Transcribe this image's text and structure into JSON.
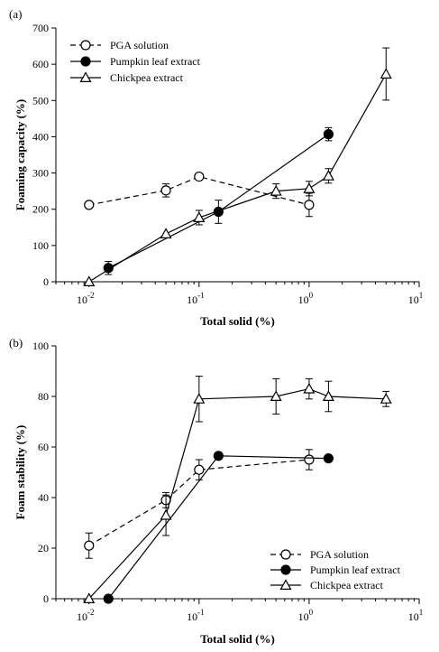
{
  "chart_data": [
    {
      "panel_label": "(a)",
      "type": "line",
      "xscale": "log",
      "xlim": [
        0.005,
        10
      ],
      "ylim": [
        0,
        700
      ],
      "xlabel": "Total solid (%)",
      "ylabel": "Foaming capacity (%)",
      "xticks": [
        0.01,
        0.1,
        1,
        10
      ],
      "xtick_base": [
        "10",
        "10",
        "10",
        "10"
      ],
      "xtick_exp": [
        "-2",
        "-1",
        "0",
        "1"
      ],
      "yticks": [
        0,
        100,
        200,
        300,
        400,
        500,
        600,
        700
      ],
      "ytick_labels": [
        "0",
        "100",
        "200",
        "300",
        "400",
        "500",
        "600",
        "700"
      ],
      "legend_position": "top-left",
      "series": [
        {
          "name": "PGA solution",
          "marker": "open-circle",
          "linestyle": "dashed",
          "x": [
            0.01,
            0.05,
            0.1,
            1
          ],
          "y": [
            212,
            252,
            290,
            212
          ],
          "err": [
            0,
            18,
            0,
            32
          ]
        },
        {
          "name": "Pumpkin leaf extract",
          "marker": "filled-circle",
          "linestyle": "solid",
          "x": [
            0.015,
            0.15,
            1.5
          ],
          "y": [
            38,
            193,
            407
          ],
          "err": [
            18,
            32,
            18
          ]
        },
        {
          "name": "Chickpea extract",
          "marker": "open-triangle",
          "linestyle": "solid",
          "x": [
            0.01,
            0.05,
            0.1,
            0.5,
            1,
            1.5,
            5
          ],
          "y": [
            0,
            132,
            177,
            250,
            257,
            292,
            573
          ],
          "err": [
            0,
            0,
            20,
            20,
            20,
            20,
            72
          ]
        }
      ]
    },
    {
      "panel_label": "(b)",
      "type": "line",
      "xscale": "log",
      "xlim": [
        0.005,
        10
      ],
      "ylim": [
        0,
        100
      ],
      "xlabel": "Total solid (%)",
      "ylabel": "Foam stability (%)",
      "xticks": [
        0.01,
        0.1,
        1,
        10
      ],
      "xtick_base": [
        "10",
        "10",
        "10",
        "10"
      ],
      "xtick_exp": [
        "-2",
        "-1",
        "0",
        "1"
      ],
      "yticks": [
        0,
        20,
        40,
        60,
        80,
        100
      ],
      "ytick_labels": [
        "0",
        "20",
        "40",
        "60",
        "80",
        "100"
      ],
      "legend_position": "bottom-right",
      "series": [
        {
          "name": "PGA solution",
          "marker": "open-circle",
          "linestyle": "dashed",
          "x": [
            0.01,
            0.05,
            0.1,
            1
          ],
          "y": [
            21,
            39,
            51,
            55
          ],
          "err": [
            5,
            3,
            4,
            4
          ]
        },
        {
          "name": "Pumpkin leaf extract",
          "marker": "filled-circle",
          "linestyle": "solid",
          "x": [
            0.015,
            0.15,
            1.5
          ],
          "y": [
            0,
            56.5,
            55.5
          ],
          "err": [
            0,
            1,
            0
          ]
        },
        {
          "name": "Chickpea extract",
          "marker": "open-triangle",
          "linestyle": "solid",
          "x": [
            0.01,
            0.05,
            0.1,
            0.5,
            1,
            1.5,
            5
          ],
          "y": [
            0,
            33,
            79,
            80,
            83,
            80,
            79
          ],
          "err": [
            0,
            8,
            9,
            7,
            4,
            6,
            3
          ]
        }
      ]
    }
  ]
}
